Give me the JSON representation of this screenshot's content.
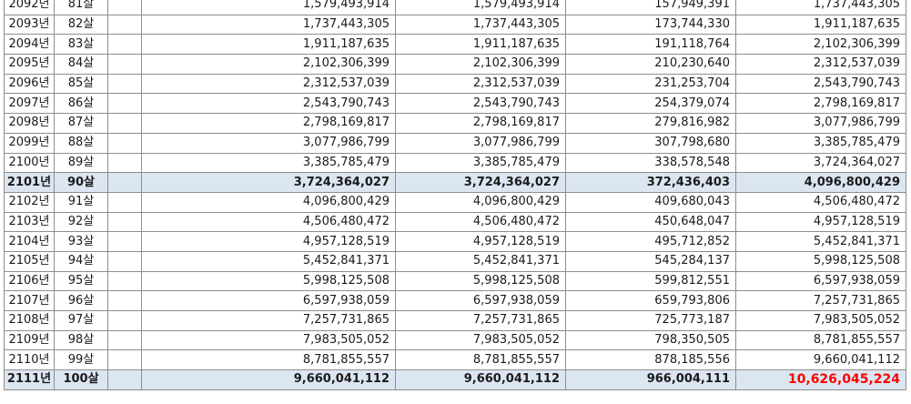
{
  "rows": [
    {
      "year": "2092년",
      "age": "81살",
      "v1": "1,579,493,914",
      "v2": "1,579,493,914",
      "v3": "157,949,391",
      "v4": "1,737,443,305",
      "hl": false
    },
    {
      "year": "2093년",
      "age": "82살",
      "v1": "1,737,443,305",
      "v2": "1,737,443,305",
      "v3": "173,744,330",
      "v4": "1,911,187,635",
      "hl": false
    },
    {
      "year": "2094년",
      "age": "83살",
      "v1": "1,911,187,635",
      "v2": "1,911,187,635",
      "v3": "191,118,764",
      "v4": "2,102,306,399",
      "hl": false
    },
    {
      "year": "2095년",
      "age": "84살",
      "v1": "2,102,306,399",
      "v2": "2,102,306,399",
      "v3": "210,230,640",
      "v4": "2,312,537,039",
      "hl": false
    },
    {
      "year": "2096년",
      "age": "85살",
      "v1": "2,312,537,039",
      "v2": "2,312,537,039",
      "v3": "231,253,704",
      "v4": "2,543,790,743",
      "hl": false
    },
    {
      "year": "2097년",
      "age": "86살",
      "v1": "2,543,790,743",
      "v2": "2,543,790,743",
      "v3": "254,379,074",
      "v4": "2,798,169,817",
      "hl": false
    },
    {
      "year": "2098년",
      "age": "87살",
      "v1": "2,798,169,817",
      "v2": "2,798,169,817",
      "v3": "279,816,982",
      "v4": "3,077,986,799",
      "hl": false
    },
    {
      "year": "2099년",
      "age": "88살",
      "v1": "3,077,986,799",
      "v2": "3,077,986,799",
      "v3": "307,798,680",
      "v4": "3,385,785,479",
      "hl": false
    },
    {
      "year": "2100년",
      "age": "89살",
      "v1": "3,385,785,479",
      "v2": "3,385,785,479",
      "v3": "338,578,548",
      "v4": "3,724,364,027",
      "hl": false
    },
    {
      "year": "2101년",
      "age": "90살",
      "v1": "3,724,364,027",
      "v2": "3,724,364,027",
      "v3": "372,436,403",
      "v4": "4,096,800,429",
      "hl": true
    },
    {
      "year": "2102년",
      "age": "91살",
      "v1": "4,096,800,429",
      "v2": "4,096,800,429",
      "v3": "409,680,043",
      "v4": "4,506,480,472",
      "hl": false
    },
    {
      "year": "2103년",
      "age": "92살",
      "v1": "4,506,480,472",
      "v2": "4,506,480,472",
      "v3": "450,648,047",
      "v4": "4,957,128,519",
      "hl": false
    },
    {
      "year": "2104년",
      "age": "93살",
      "v1": "4,957,128,519",
      "v2": "4,957,128,519",
      "v3": "495,712,852",
      "v4": "5,452,841,371",
      "hl": false
    },
    {
      "year": "2105년",
      "age": "94살",
      "v1": "5,452,841,371",
      "v2": "5,452,841,371",
      "v3": "545,284,137",
      "v4": "5,998,125,508",
      "hl": false
    },
    {
      "year": "2106년",
      "age": "95살",
      "v1": "5,998,125,508",
      "v2": "5,998,125,508",
      "v3": "599,812,551",
      "v4": "6,597,938,059",
      "hl": false
    },
    {
      "year": "2107년",
      "age": "96살",
      "v1": "6,597,938,059",
      "v2": "6,597,938,059",
      "v3": "659,793,806",
      "v4": "7,257,731,865",
      "hl": false
    },
    {
      "year": "2108년",
      "age": "97살",
      "v1": "7,257,731,865",
      "v2": "7,257,731,865",
      "v3": "725,773,187",
      "v4": "7,983,505,052",
      "hl": false
    },
    {
      "year": "2109년",
      "age": "98살",
      "v1": "7,983,505,052",
      "v2": "7,983,505,052",
      "v3": "798,350,505",
      "v4": "8,781,855,557",
      "hl": false
    },
    {
      "year": "2110년",
      "age": "99살",
      "v1": "8,781,855,557",
      "v2": "8,781,855,557",
      "v3": "878,185,556",
      "v4": "9,660,041,112",
      "hl": false
    },
    {
      "year": "2111년",
      "age": "100살",
      "v1": "9,660,041,112",
      "v2": "9,660,041,112",
      "v3": "966,004,111",
      "v4": "10,626,045,224",
      "hl": true,
      "v4_red": true
    }
  ],
  "colors": {
    "highlight_row": "#dce6f1",
    "grid": "#8e8e8e",
    "emphasis": "#ff0000"
  }
}
